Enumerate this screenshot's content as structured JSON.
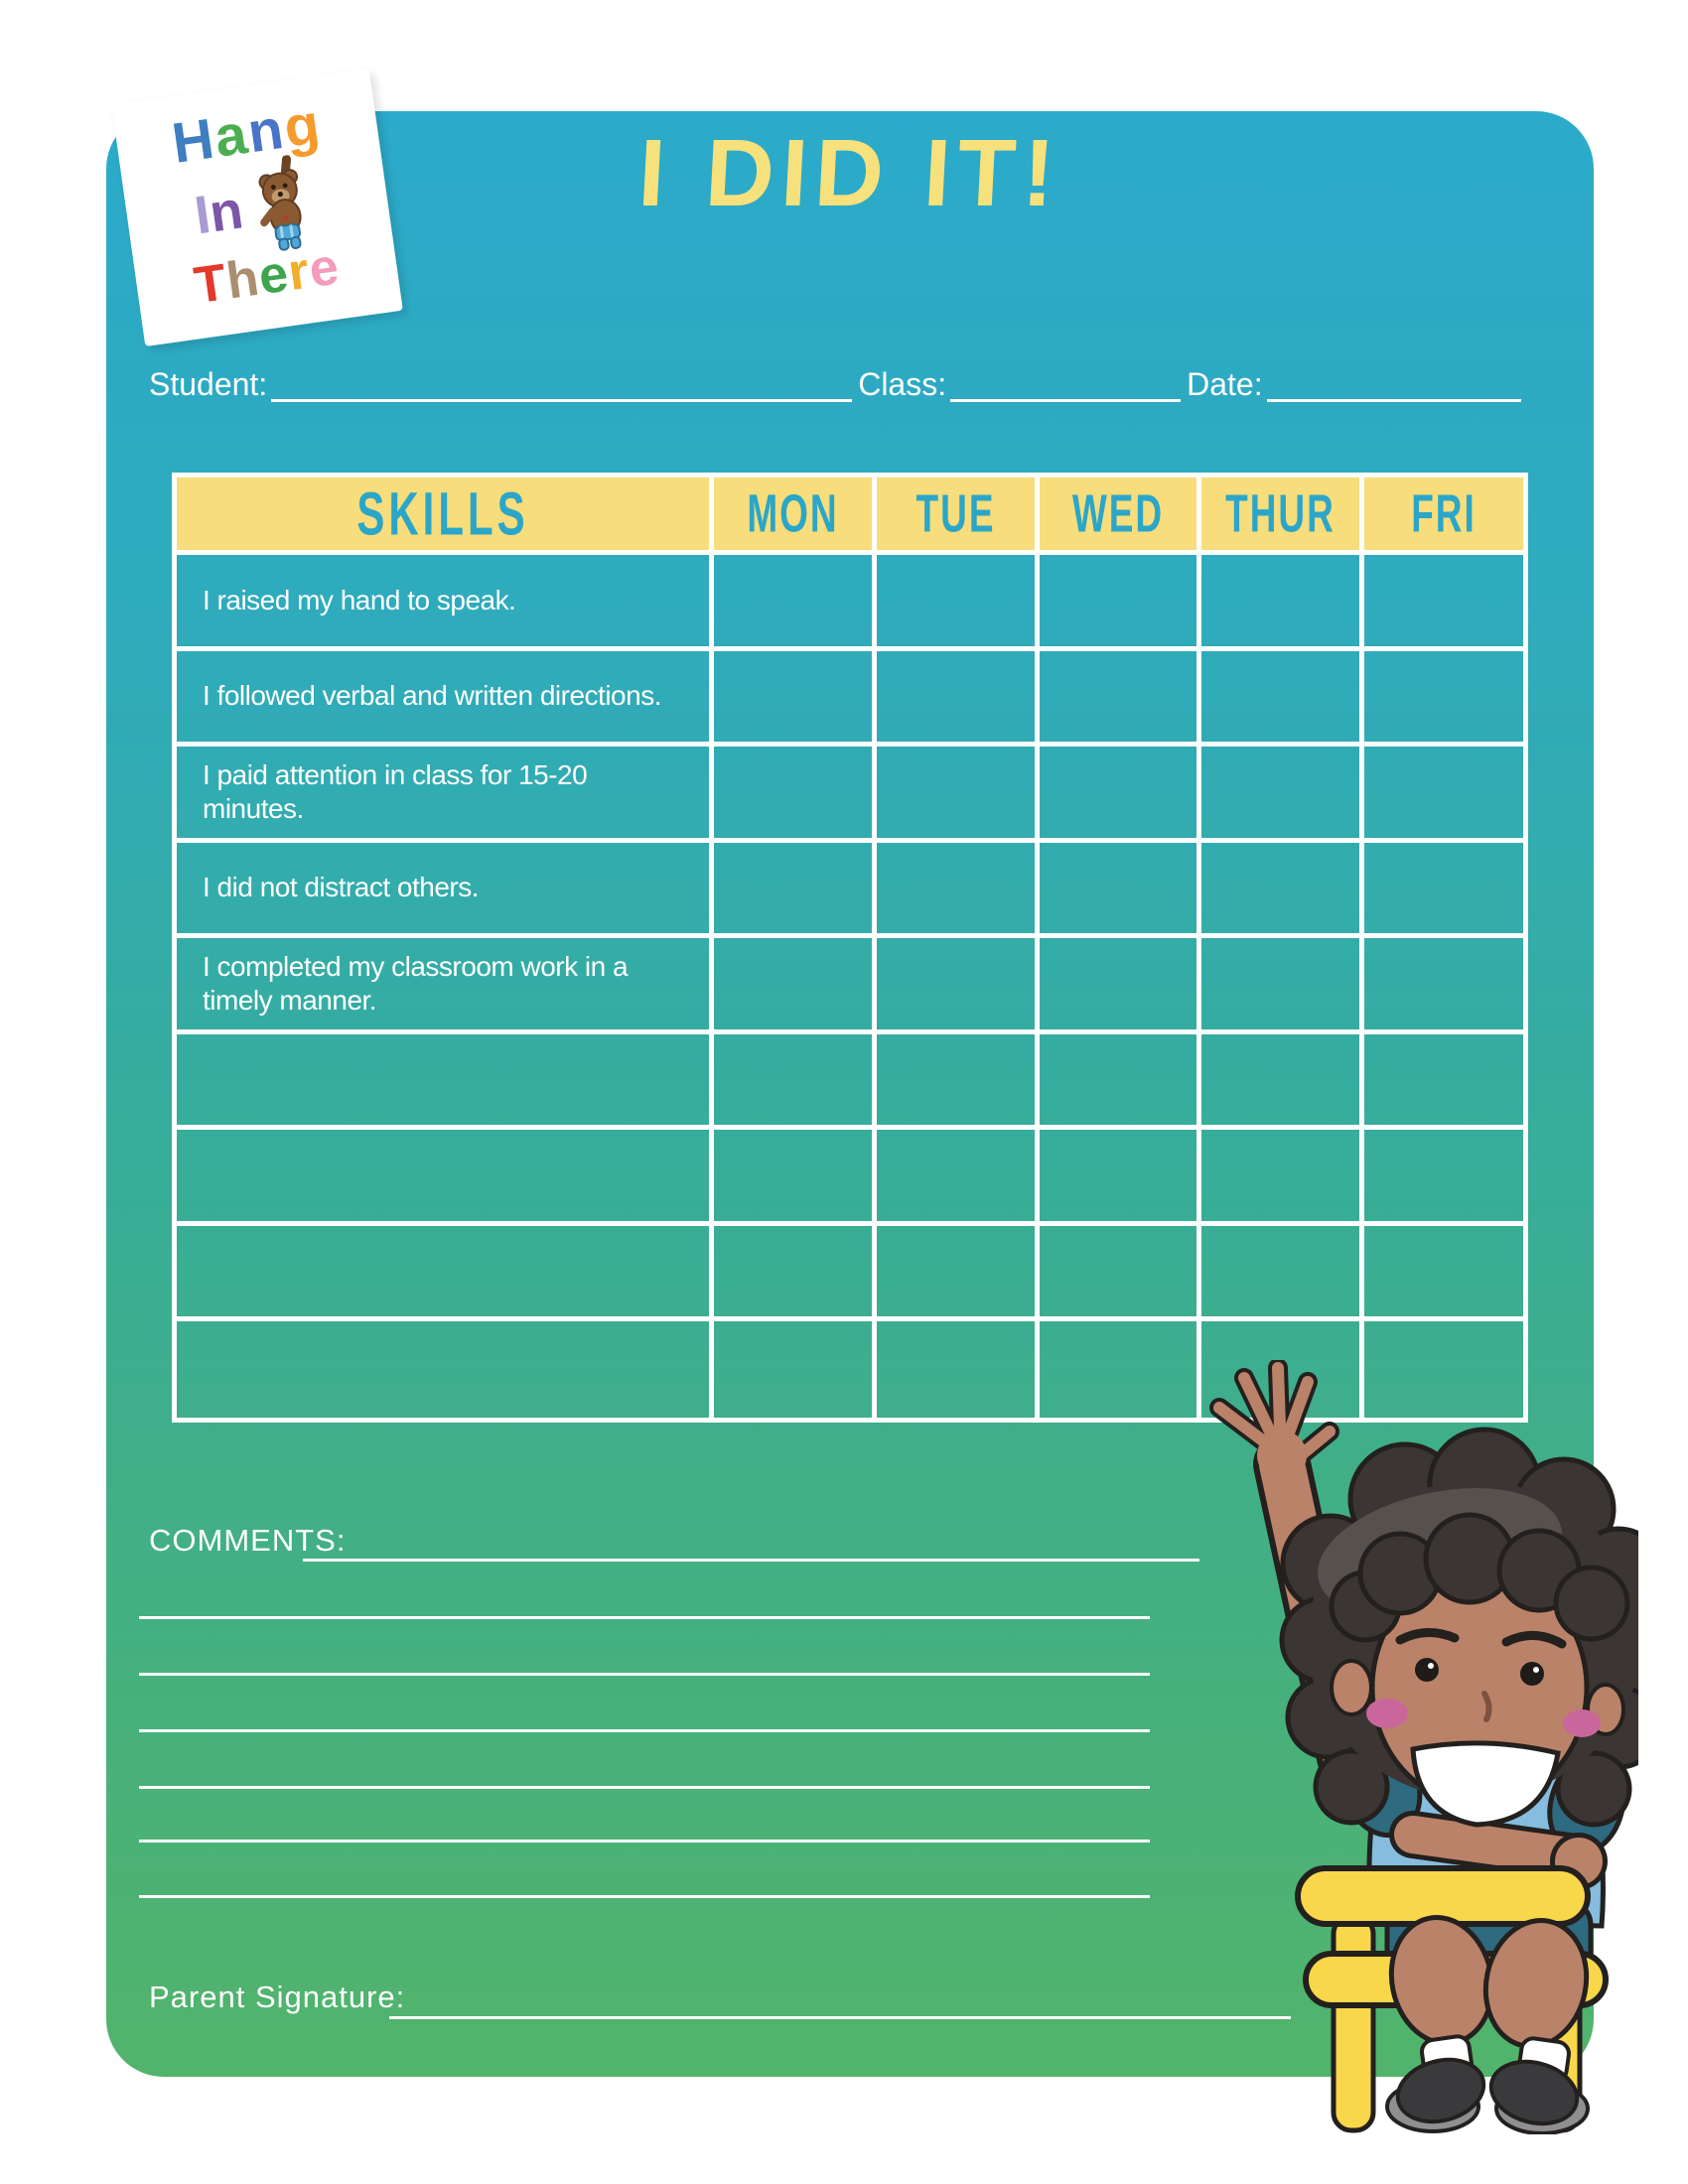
{
  "header": {
    "title": "I DID IT!"
  },
  "logo": {
    "words": [
      {
        "name": "hang",
        "letters": [
          [
            "H",
            "#3F7EC1"
          ],
          [
            "a",
            "#4CAE50"
          ],
          [
            "n",
            "#4A74C9"
          ],
          [
            "g",
            "#F59B2D"
          ]
        ]
      },
      {
        "name": "in",
        "letters": [
          [
            "I",
            "#A99BD4"
          ],
          [
            "n",
            "#7C57A8"
          ]
        ]
      },
      {
        "name": "there",
        "letters": [
          [
            "T",
            "#E2392B"
          ],
          [
            "h",
            "#A98F6F"
          ],
          [
            "e",
            "#3EA44D"
          ],
          [
            "r",
            "#F2AE2A"
          ],
          [
            "e",
            "#F49CBC"
          ]
        ]
      }
    ],
    "bear_icon": "teddy-bear"
  },
  "fields": {
    "student_label": "Student:",
    "class_label": "Class:",
    "date_label": "Date:",
    "student_value": "",
    "class_value": "",
    "date_value": ""
  },
  "table": {
    "skills_header": "SKILLS",
    "day_headers": [
      "MON",
      "TUE",
      "WED",
      "THUR",
      "FRI"
    ],
    "skills": [
      "I raised my hand to speak.",
      "I followed verbal and written directions.",
      "I paid attention in class for 15-20 minutes.",
      "I did not distract others.",
      "I completed my classroom work in a timely manner."
    ],
    "empty_row_count": 4
  },
  "comments": {
    "label": "COMMENTS:",
    "line_count": 6
  },
  "signature": {
    "label": "Parent Signature:"
  },
  "colors": {
    "bg_top": "#2BAACB",
    "bg_mid": "#38AD97",
    "bg_bottom": "#52B46B",
    "header_yellow": "#F7DD7B",
    "header_text": "#2BA6C8",
    "title_yellow": "#F6E17C",
    "line_white": "#FFFFFF"
  },
  "illustration": {
    "name": "boy-raising-hand-on-yellow-chair",
    "palette": {
      "skin": "#BA8269",
      "hair": "#3B3633",
      "hair_highlight": "#57514D",
      "shirt": "#86BDDE",
      "sleeves": "#2E6A80",
      "shorts": "#2E6A80",
      "chair": "#F8D74A",
      "socks": "#FFFFFF",
      "shoes": "#3A3A3C",
      "cheeks": "#C9679C",
      "outline": "#23201E"
    }
  }
}
